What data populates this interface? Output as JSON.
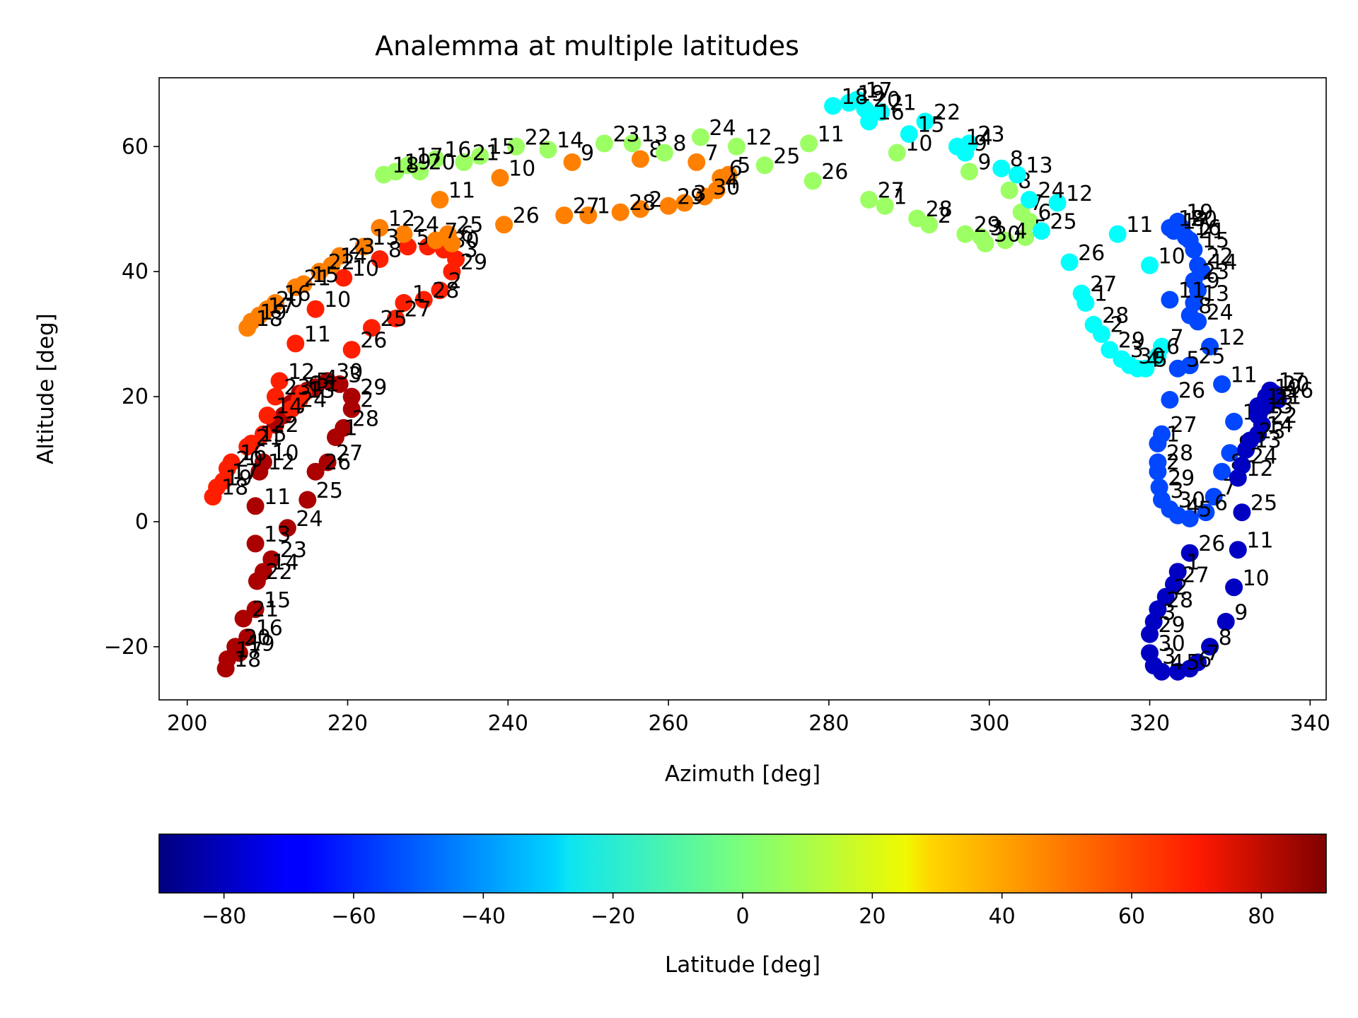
{
  "chart_data": {
    "type": "scatter",
    "title": "Analemma at multiple latitudes",
    "xlabel": "Azimuth [deg]",
    "ylabel": "Altitude [deg]",
    "xlim": [
      196.5,
      342
    ],
    "ylim": [
      -28.5,
      71
    ],
    "xticks": [
      "200",
      "220",
      "240",
      "260",
      "280",
      "300",
      "320",
      "340"
    ],
    "yticks": [
      "−20",
      "0",
      "20",
      "40",
      "60"
    ],
    "xtick_values": [
      200,
      220,
      240,
      260,
      280,
      300,
      320,
      340
    ],
    "ytick_values": [
      -20,
      0,
      20,
      40,
      60
    ],
    "grid": false,
    "colormap": "jet",
    "colorbar": {
      "label": "Latitude [deg]",
      "range": [
        -90,
        90
      ],
      "ticks": [
        "−80",
        "−60",
        "−40",
        "−20",
        "0",
        "20",
        "40",
        "60",
        "80"
      ],
      "tick_values": [
        -80,
        -60,
        -40,
        -20,
        0,
        20,
        40,
        60,
        80
      ],
      "orientation": "horizontal"
    },
    "series": [
      {
        "latitude": 82.5,
        "points": [
          [
            204.8,
            -23.5,
            "18"
          ],
          [
            205,
            -22,
            "17"
          ],
          [
            206.5,
            -21,
            "19"
          ],
          [
            206,
            -20,
            "20"
          ],
          [
            207.5,
            -18.5,
            "16"
          ],
          [
            207,
            -15.5,
            "21"
          ],
          [
            208.5,
            -14,
            "15"
          ],
          [
            208.7,
            -9.5,
            "22"
          ],
          [
            209.5,
            -8,
            "14"
          ],
          [
            210.5,
            -6,
            "23"
          ],
          [
            208.5,
            -3.5,
            "13"
          ],
          [
            212.5,
            -1,
            "24"
          ],
          [
            208.5,
            2.5,
            "11"
          ],
          [
            215,
            3.5,
            "25"
          ],
          [
            216,
            8,
            "26"
          ],
          [
            217.5,
            9.5,
            "27"
          ],
          [
            218.5,
            13.5,
            "1"
          ],
          [
            219.5,
            15,
            "28"
          ],
          [
            220.5,
            18,
            "2"
          ],
          [
            220.5,
            20,
            "29"
          ],
          [
            219,
            22,
            "3"
          ],
          [
            217.5,
            22.5,
            "30"
          ],
          [
            216,
            21.5,
            "4"
          ],
          [
            215,
            21,
            "5"
          ],
          [
            214,
            20.5,
            "6"
          ],
          [
            213,
            19,
            "7"
          ],
          [
            212,
            17,
            "8"
          ],
          [
            211,
            15.5,
            "9"
          ],
          [
            209.5,
            9.5,
            "10"
          ],
          [
            209,
            8,
            "12"
          ]
        ]
      },
      {
        "latitude": 62,
        "points": [
          [
            203.2,
            4,
            "18"
          ],
          [
            203.7,
            5.5,
            "19"
          ],
          [
            204.5,
            6.5,
            "17"
          ],
          [
            205,
            8.5,
            "20"
          ],
          [
            205.5,
            9.5,
            "16"
          ],
          [
            207.5,
            12,
            "21"
          ],
          [
            208,
            12.5,
            "15"
          ],
          [
            209.5,
            14,
            "22"
          ],
          [
            210,
            17,
            "14"
          ],
          [
            211,
            20,
            "23"
          ],
          [
            211.5,
            22.5,
            "12"
          ],
          [
            213,
            18,
            "24"
          ],
          [
            214,
            19.5,
            "13"
          ],
          [
            214.5,
            20.5,
            "11"
          ],
          [
            213.5,
            28.5,
            "11"
          ],
          [
            216,
            34,
            "10"
          ],
          [
            220.5,
            27.5,
            "26"
          ],
          [
            223,
            31,
            "25"
          ],
          [
            226,
            32.5,
            "27"
          ],
          [
            227,
            35,
            "1"
          ],
          [
            229.5,
            35.5,
            "28"
          ],
          [
            231.5,
            37,
            "2"
          ],
          [
            233,
            40,
            "29"
          ],
          [
            233.5,
            42,
            "3"
          ],
          [
            232,
            43.5,
            "30"
          ],
          [
            230,
            44,
            "4"
          ],
          [
            227.5,
            44,
            "5"
          ],
          [
            224,
            42,
            "8"
          ],
          [
            219.5,
            39,
            "10"
          ]
        ]
      },
      {
        "latitude": 45,
        "points": [
          [
            207.5,
            31,
            "18"
          ],
          [
            208,
            32,
            "19"
          ],
          [
            209,
            33,
            "17"
          ],
          [
            210,
            34,
            "20"
          ],
          [
            211,
            35,
            "16"
          ],
          [
            213.5,
            37.5,
            "21"
          ],
          [
            214.5,
            38,
            "15"
          ],
          [
            216.5,
            40,
            "22"
          ],
          [
            218,
            41,
            "14"
          ],
          [
            219,
            42.5,
            "23"
          ],
          [
            222,
            44,
            "13"
          ],
          [
            224,
            47,
            "12"
          ],
          [
            227,
            46,
            "24"
          ],
          [
            231,
            45,
            "7"
          ],
          [
            231.5,
            51.5,
            "11"
          ],
          [
            239,
            55,
            "10"
          ],
          [
            239.5,
            47.5,
            "26"
          ],
          [
            247,
            49,
            "27"
          ],
          [
            250,
            49,
            "1"
          ],
          [
            254,
            49.5,
            "28"
          ],
          [
            256.5,
            50,
            "2"
          ],
          [
            260,
            50.5,
            "29"
          ],
          [
            262,
            51,
            "3"
          ],
          [
            264.5,
            52,
            "30"
          ],
          [
            266,
            53,
            "4"
          ],
          [
            267.5,
            55.5,
            "5"
          ],
          [
            263.5,
            57.5,
            "7"
          ],
          [
            256.5,
            58,
            "8"
          ],
          [
            248,
            57.5,
            "9"
          ],
          [
            266.5,
            55,
            "6"
          ],
          [
            233,
            44.5,
            "6"
          ],
          [
            232.5,
            46,
            "25"
          ]
        ]
      },
      {
        "latitude": 5,
        "points": [
          [
            224.5,
            55.5,
            "18"
          ],
          [
            226,
            56,
            "19"
          ],
          [
            227.5,
            57,
            "17"
          ],
          [
            229,
            56,
            "20"
          ],
          [
            231,
            58,
            "16"
          ],
          [
            234.5,
            57.5,
            "21"
          ],
          [
            236.5,
            58.5,
            "15"
          ],
          [
            241,
            60,
            "22"
          ],
          [
            245,
            59.5,
            "14"
          ],
          [
            252,
            60.5,
            "23"
          ],
          [
            255.5,
            60.5,
            "13"
          ],
          [
            259.5,
            59,
            "8"
          ],
          [
            264,
            61.5,
            "24"
          ],
          [
            268.5,
            60,
            "12"
          ],
          [
            272,
            57,
            "25"
          ],
          [
            277.5,
            60.5,
            "11"
          ],
          [
            278,
            54.5,
            "26"
          ],
          [
            285,
            51.5,
            "27"
          ],
          [
            287,
            50.5,
            "1"
          ],
          [
            291,
            48.5,
            "28"
          ],
          [
            292.5,
            47.5,
            "2"
          ],
          [
            297,
            46,
            "29"
          ],
          [
            299,
            45.5,
            "3"
          ],
          [
            299.5,
            44.5,
            "30"
          ],
          [
            302,
            45,
            "4"
          ],
          [
            304.5,
            45.5,
            "5"
          ],
          [
            305,
            48,
            "6"
          ],
          [
            304,
            49.5,
            "7"
          ],
          [
            302.5,
            53,
            "8"
          ],
          [
            297.5,
            56,
            "9"
          ],
          [
            288.5,
            59,
            "10"
          ]
        ]
      },
      {
        "latitude": -22,
        "points": [
          [
            280.5,
            66.5,
            "18"
          ],
          [
            282.5,
            67,
            "19"
          ],
          [
            283.5,
            67.5,
            "17"
          ],
          [
            284.5,
            66,
            "20"
          ],
          [
            285,
            64,
            "16"
          ],
          [
            286.5,
            65.5,
            "21"
          ],
          [
            290,
            62,
            "15"
          ],
          [
            292,
            64,
            "22"
          ],
          [
            296,
            60,
            "14"
          ],
          [
            297.5,
            60.5,
            "23"
          ],
          [
            297,
            59,
            "9"
          ],
          [
            301.5,
            56.5,
            "8"
          ],
          [
            303.5,
            55.5,
            "13"
          ],
          [
            305,
            51.5,
            "24"
          ],
          [
            308.5,
            51,
            "12"
          ],
          [
            306.5,
            46.5,
            "25"
          ],
          [
            310,
            41.5,
            "26"
          ],
          [
            311.5,
            36.5,
            "27"
          ],
          [
            312,
            35,
            "1"
          ],
          [
            313,
            31.5,
            "28"
          ],
          [
            314,
            30,
            "2"
          ],
          [
            315,
            27.5,
            "29"
          ],
          [
            316.5,
            26,
            "3"
          ],
          [
            317.5,
            25,
            "30"
          ],
          [
            318.5,
            24.5,
            "4"
          ],
          [
            319.5,
            24.5,
            "5"
          ],
          [
            321,
            26.5,
            "6"
          ],
          [
            321.5,
            28,
            "7"
          ],
          [
            316,
            46,
            "11"
          ],
          [
            320,
            41,
            "10"
          ]
        ]
      },
      {
        "latitude": -55,
        "points": [
          [
            322.5,
            47,
            "18"
          ],
          [
            323.5,
            48,
            "19"
          ],
          [
            323,
            46.5,
            "17"
          ],
          [
            324,
            47,
            "20"
          ],
          [
            324.5,
            45.5,
            "16"
          ],
          [
            325,
            45,
            "21"
          ],
          [
            325.5,
            43.5,
            "15"
          ],
          [
            326,
            41,
            "22"
          ],
          [
            326.5,
            40,
            "14"
          ],
          [
            325.5,
            38.5,
            "23"
          ],
          [
            326,
            37,
            "9"
          ],
          [
            325.5,
            35,
            "13"
          ],
          [
            325,
            33,
            "8"
          ],
          [
            326,
            32,
            "24"
          ],
          [
            327.5,
            28,
            "12"
          ],
          [
            325,
            25,
            "25"
          ],
          [
            323.5,
            24.5,
            "5"
          ],
          [
            322.5,
            19.5,
            "26"
          ],
          [
            321.5,
            14,
            "27"
          ],
          [
            321,
            12.5,
            "1"
          ],
          [
            321,
            9.5,
            "28"
          ],
          [
            321,
            8,
            "2"
          ],
          [
            321.2,
            5.5,
            "29"
          ],
          [
            321.5,
            3.5,
            "3"
          ],
          [
            322.5,
            2,
            "30"
          ],
          [
            323.5,
            1,
            "4"
          ],
          [
            325,
            0.5,
            "5"
          ],
          [
            327,
            1.5,
            "6"
          ],
          [
            328,
            4,
            "7"
          ],
          [
            329,
            8,
            "8"
          ],
          [
            330,
            11,
            "9"
          ],
          [
            330.5,
            16,
            "10"
          ],
          [
            329,
            22,
            "11"
          ],
          [
            322.5,
            35.5,
            "11"
          ]
        ]
      },
      {
        "latitude": -78,
        "points": [
          [
            333.5,
            18.5,
            "18"
          ],
          [
            334.5,
            20,
            "19"
          ],
          [
            335,
            21,
            "17"
          ],
          [
            335.5,
            20.5,
            "20"
          ],
          [
            336,
            19.5,
            "16"
          ],
          [
            334.5,
            18.5,
            "21"
          ],
          [
            333.5,
            17,
            "15"
          ],
          [
            334,
            15.5,
            "22"
          ],
          [
            333.5,
            14,
            "14"
          ],
          [
            332.5,
            13,
            "23"
          ],
          [
            332,
            11.5,
            "13"
          ],
          [
            331.5,
            9,
            "24"
          ],
          [
            331,
            7,
            "12"
          ],
          [
            331.5,
            1.5,
            "25"
          ],
          [
            331,
            -4.5,
            "11"
          ],
          [
            330.5,
            -10.5,
            "10"
          ],
          [
            329.5,
            -16,
            "9"
          ],
          [
            327.5,
            -20,
            "8"
          ],
          [
            326,
            -22.5,
            "7"
          ],
          [
            325,
            -23.5,
            "6"
          ],
          [
            323.5,
            -24,
            "5"
          ],
          [
            321.5,
            -24,
            "4"
          ],
          [
            320.5,
            -23,
            "3"
          ],
          [
            320,
            -21,
            "30"
          ],
          [
            320,
            -18,
            "29"
          ],
          [
            320.5,
            -16,
            "3"
          ],
          [
            321,
            -14,
            "28"
          ],
          [
            322,
            -12,
            "2"
          ],
          [
            323,
            -10,
            "27"
          ],
          [
            323.5,
            -8,
            "1"
          ],
          [
            325,
            -5,
            "26"
          ]
        ]
      }
    ]
  }
}
